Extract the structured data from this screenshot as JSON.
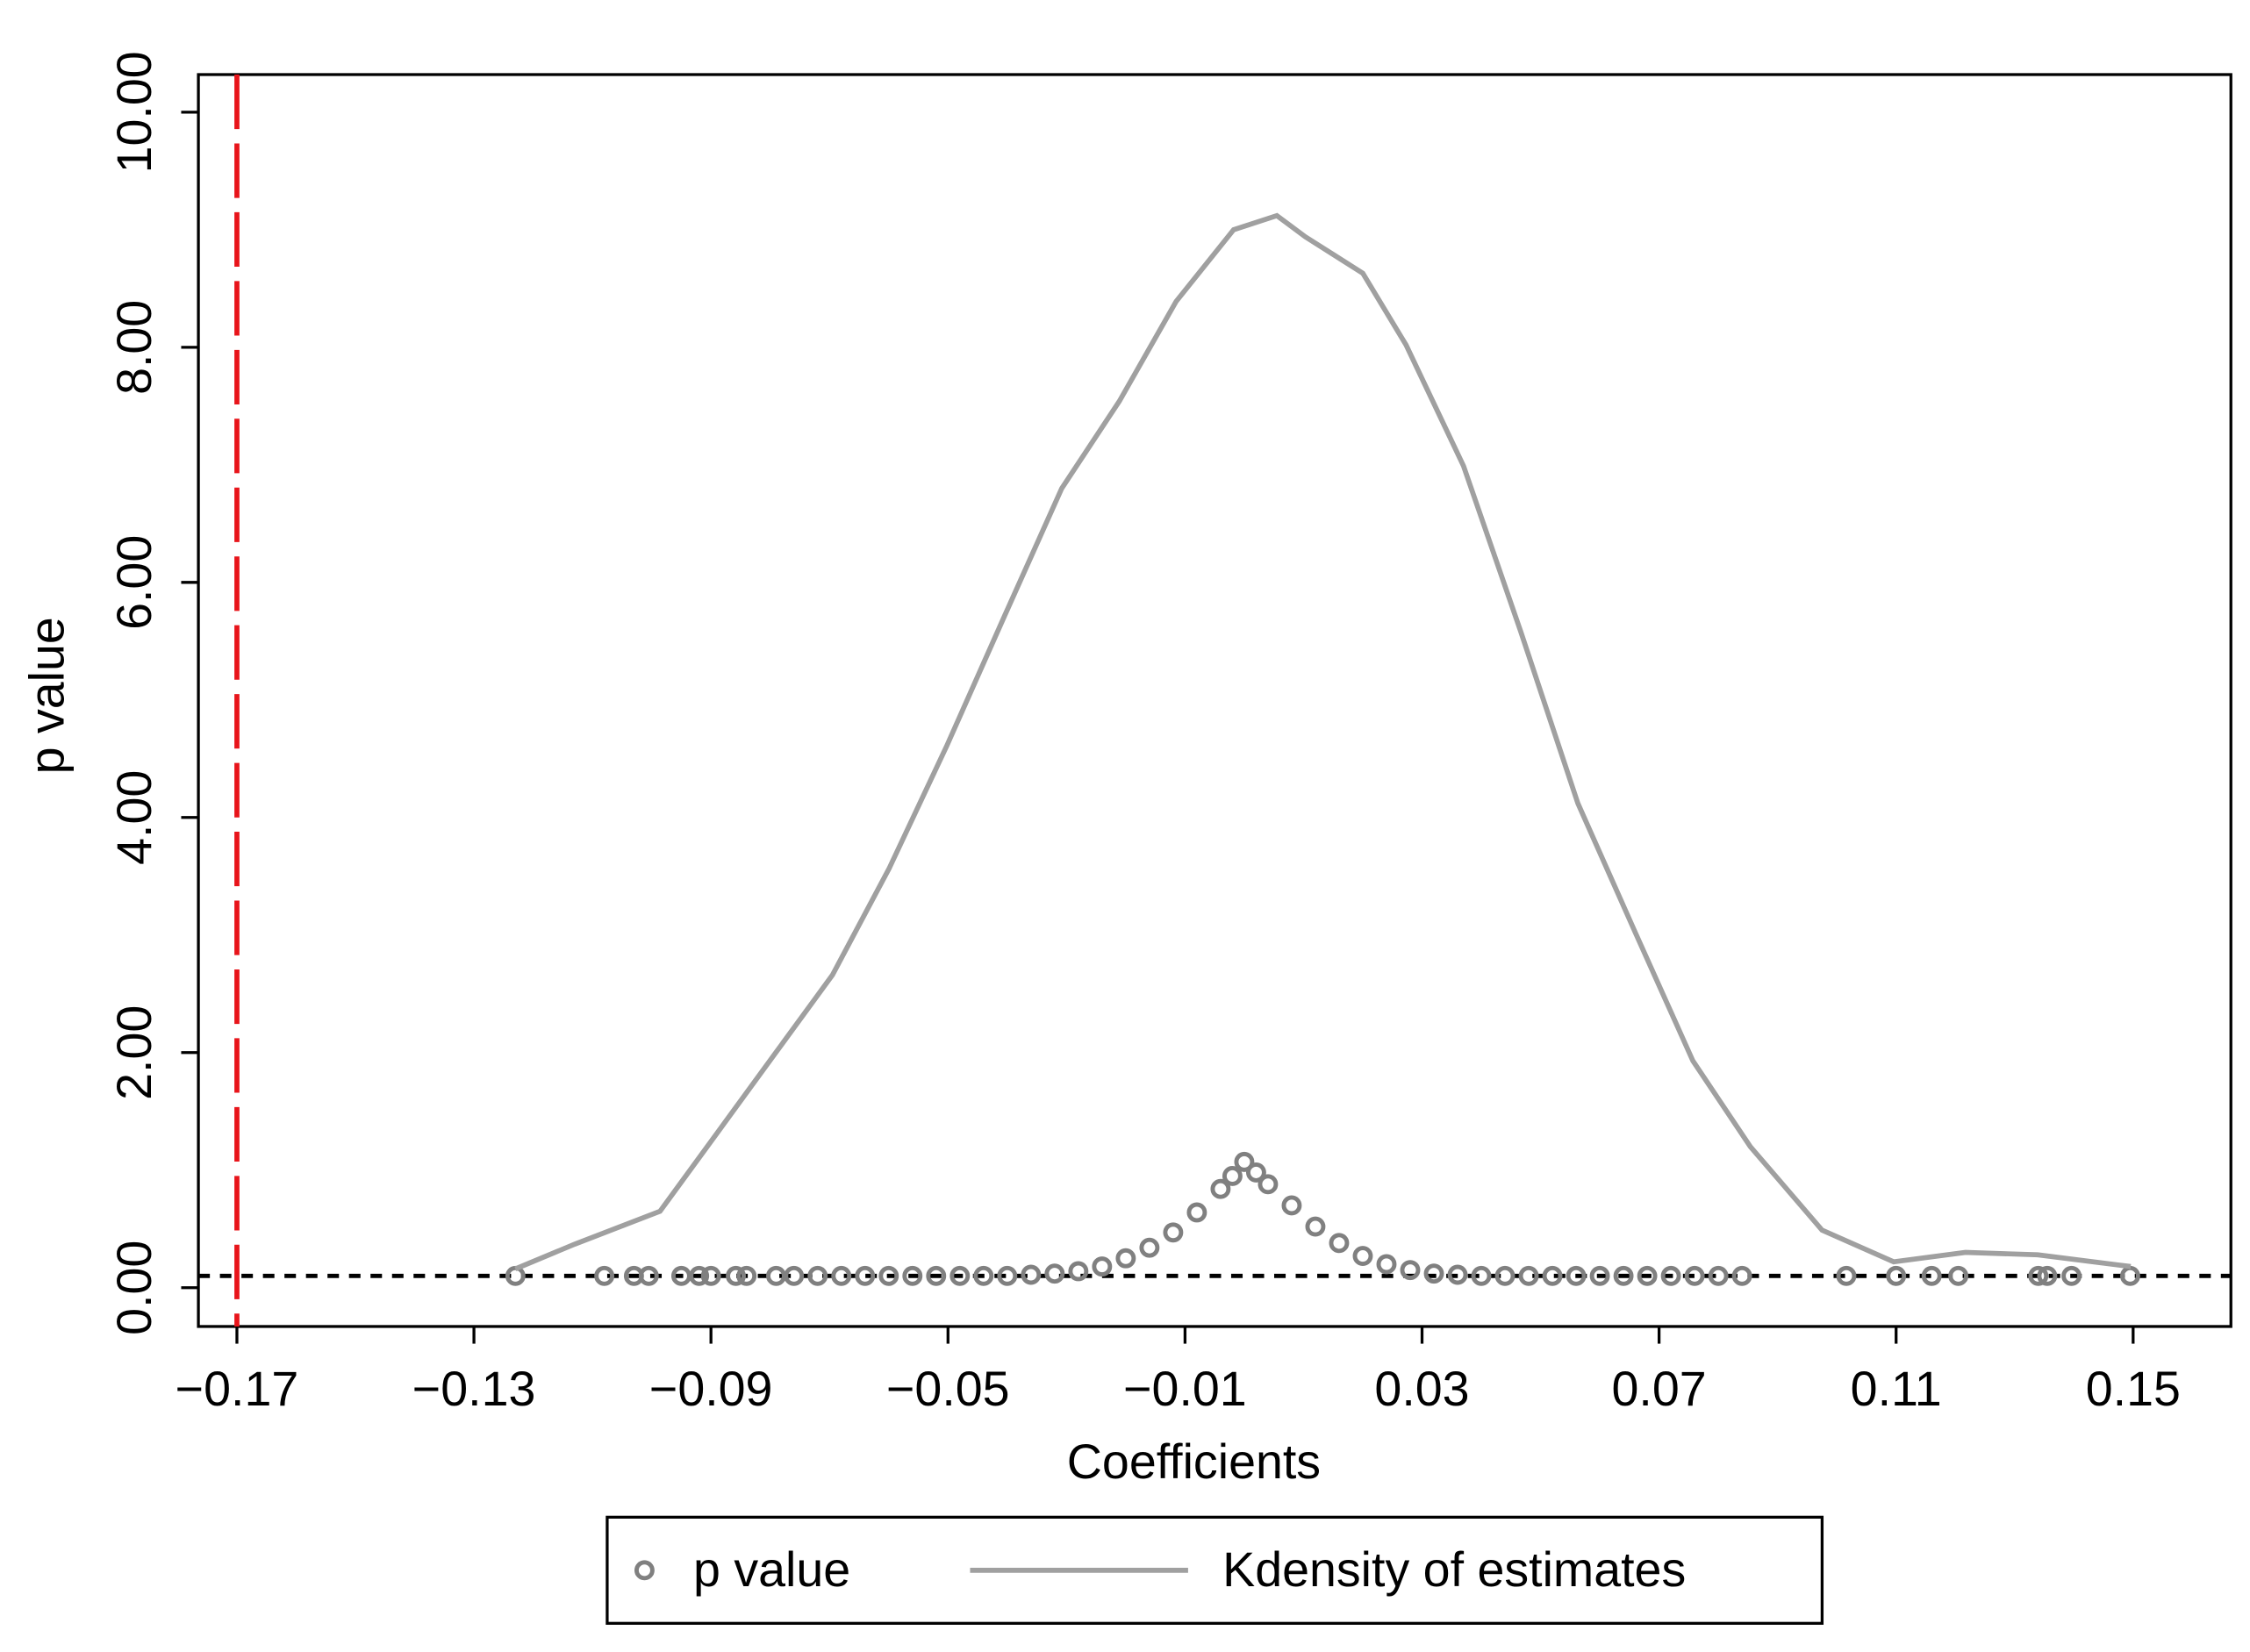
{
  "chart_data": {
    "type": "scatter",
    "x_label": "Coefficients",
    "y_label": "p value",
    "xlim": [
      -0.1765,
      0.1665
    ],
    "ylim": [
      -0.33,
      10.32
    ],
    "xticks": [
      {
        "value": -0.17,
        "label": "−0.17"
      },
      {
        "value": -0.13,
        "label": "−0.13"
      },
      {
        "value": -0.09,
        "label": "−0.09"
      },
      {
        "value": -0.05,
        "label": "−0.05"
      },
      {
        "value": -0.01,
        "label": "−0.01"
      },
      0.03,
      0.07,
      0.11,
      0.15
    ],
    "yticks": [
      {
        "value": 0,
        "label": "0.00"
      },
      {
        "value": 2,
        "label": "2.00"
      },
      {
        "value": 4,
        "label": "4.00"
      },
      {
        "value": 6,
        "label": "6.00"
      },
      {
        "value": 8,
        "label": "8.00"
      },
      {
        "value": 10,
        "label": "10.00"
      }
    ],
    "vlines": [
      {
        "value": -0.17,
        "color": "#e8141a"
      }
    ],
    "hlines": [
      {
        "value": 0.1,
        "color": "#000000"
      }
    ],
    "series": [
      {
        "name": "p value",
        "type": "scatter",
        "color": "#808080",
        "x": [
          -0.123,
          -0.108,
          -0.103,
          -0.1005,
          -0.095,
          -0.092,
          -0.09,
          -0.0858,
          -0.084,
          -0.079,
          -0.076,
          -0.072,
          -0.068,
          -0.064,
          -0.06,
          -0.056,
          -0.052,
          -0.048,
          -0.044,
          -0.04,
          -0.036,
          -0.032,
          -0.028,
          -0.024,
          -0.02,
          -0.016,
          -0.012,
          -0.008,
          -0.004,
          -0.002,
          0,
          0.002,
          0.004,
          0.008,
          0.012,
          0.016,
          0.02,
          0.024,
          0.028,
          0.032,
          0.036,
          0.04,
          0.044,
          0.048,
          0.052,
          0.056,
          0.06,
          0.064,
          0.068,
          0.072,
          0.076,
          0.08,
          0.084,
          0.1016,
          0.11,
          0.116,
          0.1205,
          0.134,
          0.1355,
          0.1396,
          0.1495
        ],
        "values": [
          0.1,
          0.1,
          0.1,
          0.1,
          0.1,
          0.1,
          0.1,
          0.1,
          0.1,
          0.1,
          0.1,
          0.1,
          0.1,
          0.1,
          0.1,
          0.1,
          0.1,
          0.1,
          0.1,
          0.1,
          0.11,
          0.12,
          0.14,
          0.18,
          0.25,
          0.34,
          0.47,
          0.64,
          0.84,
          0.95,
          1.07,
          0.98,
          0.88,
          0.7,
          0.52,
          0.38,
          0.27,
          0.2,
          0.15,
          0.12,
          0.11,
          0.1,
          0.1,
          0.1,
          0.1,
          0.1,
          0.1,
          0.1,
          0.1,
          0.1,
          0.1,
          0.1,
          0.1,
          0.1,
          0.1,
          0.1,
          0.1,
          0.1,
          0.1,
          0.1,
          0.1
        ]
      },
      {
        "name": "Kdensity of estimates",
        "type": "line",
        "color": "#a0a0a0",
        "x": [
          -0.123,
          -0.113,
          -0.0986,
          -0.0889,
          -0.0792,
          -0.0695,
          -0.0599,
          -0.0502,
          -0.0405,
          -0.0308,
          -0.0211,
          -0.0115,
          -0.0018,
          0.0055,
          0.0103,
          0.02,
          0.0273,
          0.037,
          0.0466,
          0.0563,
          0.066,
          0.0757,
          0.0854,
          0.0975,
          0.1096,
          0.1217,
          0.1339,
          0.1496
        ],
        "values": [
          0.16,
          0.37,
          0.65,
          1.32,
          1.99,
          2.66,
          3.57,
          4.61,
          5.71,
          6.8,
          7.54,
          8.39,
          9.0,
          9.12,
          8.94,
          8.63,
          8.02,
          6.99,
          5.59,
          4.12,
          3.02,
          1.93,
          1.2,
          0.49,
          0.22,
          0.3,
          0.28,
          0.18
        ]
      }
    ],
    "legend": "bottom"
  }
}
